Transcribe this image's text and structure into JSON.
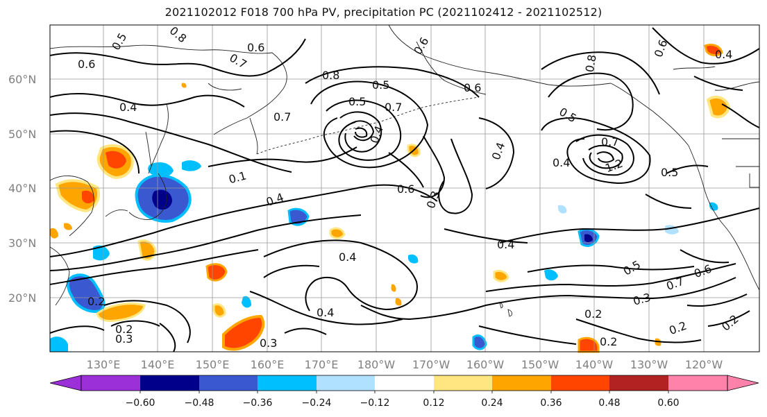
{
  "title": "2021102012 F018 700 hPa PV, precipitation PC (2021102412 - 2021102512)",
  "map": {
    "lat_labels": [
      "60°N",
      "50°N",
      "40°N",
      "30°N",
      "20°N"
    ],
    "lon_labels": [
      "130°E",
      "140°E",
      "150°E",
      "160°E",
      "170°E",
      "180°W",
      "170°W",
      "160°W",
      "150°W",
      "140°W",
      "130°W",
      "120°W"
    ],
    "pv_contour_labels": [
      "0.5",
      "0.8",
      "0.6",
      "0.7",
      "0.6",
      "0.4",
      "0.7",
      "0.8",
      "0.5",
      "0.6",
      "0.5",
      "0.4",
      "0.7",
      "0.1",
      "0.4",
      "0.6",
      "0.3",
      "0.4",
      "0.4",
      "0.4",
      "0.2",
      "0.3",
      "0.2",
      "0.3",
      "0.4",
      "0.5",
      "0.7",
      "0.8",
      "0.4",
      "0.6",
      "0.5",
      "0.7",
      "0.2",
      "0.2",
      "0.3",
      "0.6",
      "0.5",
      "0.2",
      "0.2",
      "1.2",
      "0.6",
      "0.4"
    ]
  },
  "colorbar": {
    "ticks": [
      "−0.60",
      "−0.48",
      "−0.36",
      "−0.24",
      "−0.12",
      "0.12",
      "0.24",
      "0.36",
      "0.48",
      "0.60"
    ],
    "colors": [
      "#9b30d8",
      "#00008b",
      "#3a58d0",
      "#00bfff",
      "#b0e2ff",
      "#ffffff",
      "#ffe680",
      "#ffa500",
      "#ff4500",
      "#b22222",
      "#ff82ab"
    ]
  }
}
